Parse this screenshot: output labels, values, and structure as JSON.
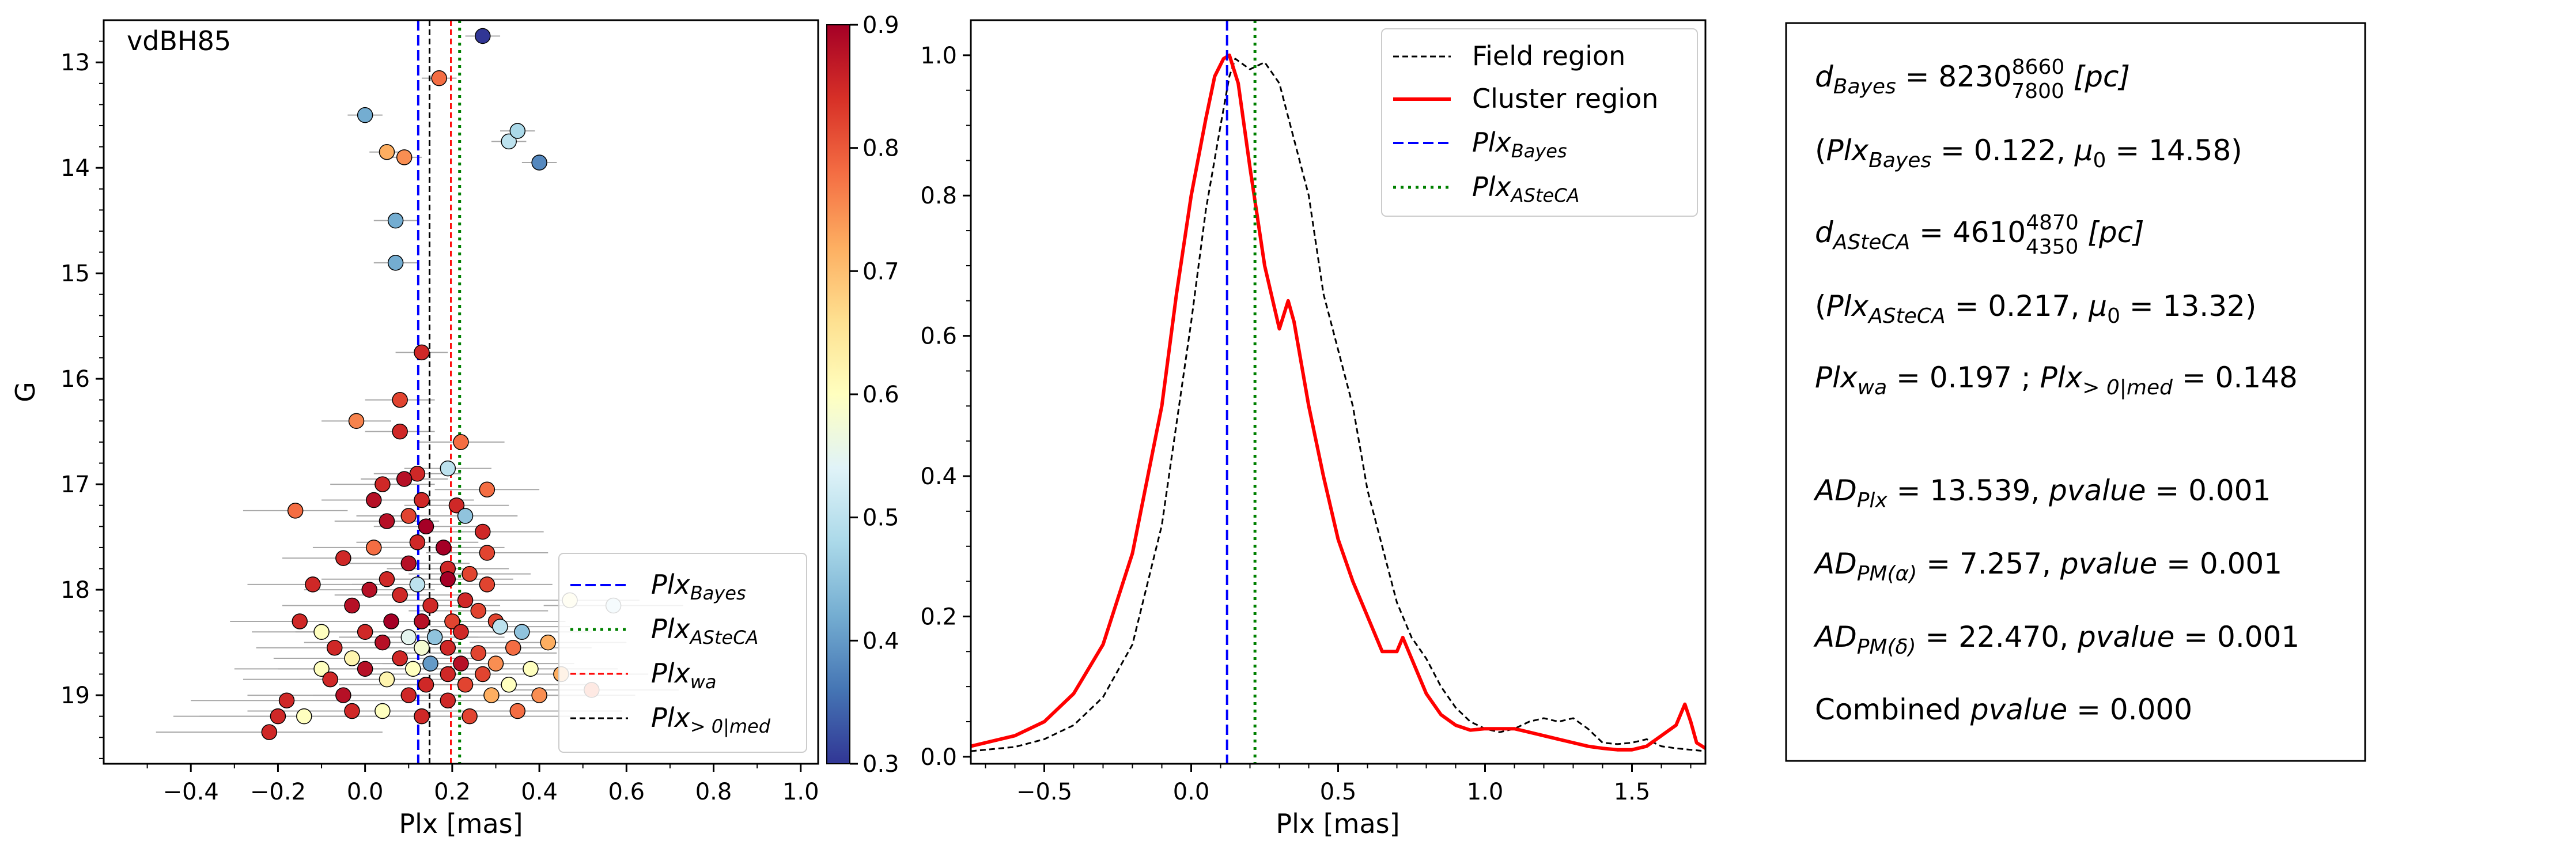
{
  "chart_data": [
    {
      "type": "scatter",
      "title": "vdBH85",
      "xlabel": "Plx [mas]",
      "ylabel": "G",
      "xlim": [
        -0.6,
        1.04
      ],
      "ylim": [
        19.65,
        12.6
      ],
      "y_inverted": true,
      "grid": false,
      "legend_placement": "lower-right",
      "xticks": [
        "−0.4",
        "−0.2",
        "0.0",
        "0.2",
        "0.4",
        "0.6",
        "0.8",
        "1.0"
      ],
      "xtick_values": [
        -0.4,
        -0.2,
        0.0,
        0.2,
        0.4,
        0.6,
        0.8,
        1.0
      ],
      "yticks": [
        "13",
        "14",
        "15",
        "16",
        "17",
        "18",
        "19"
      ],
      "ytick_values": [
        13,
        14,
        15,
        16,
        17,
        18,
        19
      ],
      "colorbar": {
        "min": 0.3,
        "max": 0.9,
        "ticks": [
          "0.3",
          "0.4",
          "0.5",
          "0.6",
          "0.7",
          "0.8",
          "0.9"
        ],
        "tick_values": [
          0.3,
          0.4,
          0.5,
          0.6,
          0.7,
          0.8,
          0.9
        ],
        "colormap": "RdYlBu_r"
      },
      "vertical_lines": [
        {
          "label_base": "Plx",
          "label_sub": "Bayes",
          "value": 0.122,
          "color": "#0000ff",
          "style": "dashed"
        },
        {
          "label_base": "Plx",
          "label_sub": "ASteCA",
          "value": 0.217,
          "color": "#008000",
          "style": "dotted"
        },
        {
          "label_base": "Plx",
          "label_sub": "wa",
          "value": 0.197,
          "color": "#ff0000",
          "style": "dashed"
        },
        {
          "label_base": "Plx",
          "label_sub": "> 0|med",
          "value": 0.148,
          "color": "#000000",
          "style": "dashed"
        }
      ],
      "points": [
        {
          "x": 0.27,
          "y": 12.75,
          "err": 0.04,
          "p": 0.3
        },
        {
          "x": 0.17,
          "y": 13.15,
          "err": 0.04,
          "p": 0.78
        },
        {
          "x": 0.0,
          "y": 13.5,
          "err": 0.04,
          "p": 0.42
        },
        {
          "x": 0.05,
          "y": 13.85,
          "err": 0.04,
          "p": 0.72
        },
        {
          "x": 0.09,
          "y": 13.9,
          "err": 0.04,
          "p": 0.75
        },
        {
          "x": 0.33,
          "y": 13.75,
          "err": 0.04,
          "p": 0.5
        },
        {
          "x": 0.35,
          "y": 13.65,
          "err": 0.04,
          "p": 0.48
        },
        {
          "x": 0.4,
          "y": 13.95,
          "err": 0.04,
          "p": 0.38
        },
        {
          "x": 0.07,
          "y": 14.5,
          "err": 0.05,
          "p": 0.42
        },
        {
          "x": 0.07,
          "y": 14.9,
          "err": 0.05,
          "p": 0.42
        },
        {
          "x": 0.13,
          "y": 15.75,
          "err": 0.06,
          "p": 0.85
        },
        {
          "x": 0.08,
          "y": 16.2,
          "err": 0.08,
          "p": 0.82
        },
        {
          "x": 0.08,
          "y": 16.5,
          "err": 0.08,
          "p": 0.85
        },
        {
          "x": -0.02,
          "y": 16.4,
          "err": 0.08,
          "p": 0.76
        },
        {
          "x": 0.22,
          "y": 16.6,
          "err": 0.1,
          "p": 0.78
        },
        {
          "x": 0.12,
          "y": 16.9,
          "err": 0.1,
          "p": 0.85
        },
        {
          "x": 0.19,
          "y": 16.85,
          "err": 0.1,
          "p": 0.5
        },
        {
          "x": 0.09,
          "y": 16.95,
          "err": 0.1,
          "p": 0.88
        },
        {
          "x": 0.04,
          "y": 17.0,
          "err": 0.12,
          "p": 0.85
        },
        {
          "x": 0.28,
          "y": 17.05,
          "err": 0.12,
          "p": 0.78
        },
        {
          "x": 0.02,
          "y": 17.15,
          "err": 0.12,
          "p": 0.88
        },
        {
          "x": 0.13,
          "y": 17.15,
          "err": 0.12,
          "p": 0.85
        },
        {
          "x": 0.21,
          "y": 17.2,
          "err": 0.12,
          "p": 0.85
        },
        {
          "x": -0.16,
          "y": 17.25,
          "err": 0.12,
          "p": 0.78
        },
        {
          "x": 0.1,
          "y": 17.3,
          "err": 0.12,
          "p": 0.82
        },
        {
          "x": 0.23,
          "y": 17.3,
          "err": 0.12,
          "p": 0.45
        },
        {
          "x": 0.05,
          "y": 17.35,
          "err": 0.12,
          "p": 0.88
        },
        {
          "x": 0.14,
          "y": 17.4,
          "err": 0.12,
          "p": 0.9
        },
        {
          "x": 0.27,
          "y": 17.45,
          "err": 0.14,
          "p": 0.85
        },
        {
          "x": 0.12,
          "y": 17.55,
          "err": 0.14,
          "p": 0.85
        },
        {
          "x": 0.02,
          "y": 17.6,
          "err": 0.14,
          "p": 0.78
        },
        {
          "x": 0.18,
          "y": 17.6,
          "err": 0.14,
          "p": 0.9
        },
        {
          "x": 0.28,
          "y": 17.65,
          "err": 0.14,
          "p": 0.82
        },
        {
          "x": -0.05,
          "y": 17.7,
          "err": 0.14,
          "p": 0.85
        },
        {
          "x": 0.1,
          "y": 17.75,
          "err": 0.14,
          "p": 0.88
        },
        {
          "x": 0.19,
          "y": 17.8,
          "err": 0.14,
          "p": 0.85
        },
        {
          "x": 0.24,
          "y": 17.85,
          "err": 0.14,
          "p": 0.82
        },
        {
          "x": 0.05,
          "y": 17.9,
          "err": 0.15,
          "p": 0.85
        },
        {
          "x": -0.12,
          "y": 17.95,
          "err": 0.15,
          "p": 0.85
        },
        {
          "x": 0.12,
          "y": 17.95,
          "err": 0.15,
          "p": 0.5
        },
        {
          "x": 0.19,
          "y": 17.9,
          "err": 0.15,
          "p": 0.9
        },
        {
          "x": 0.28,
          "y": 17.95,
          "err": 0.15,
          "p": 0.82
        },
        {
          "x": 0.01,
          "y": 18.0,
          "err": 0.15,
          "p": 0.88
        },
        {
          "x": 0.08,
          "y": 18.05,
          "err": 0.15,
          "p": 0.85
        },
        {
          "x": 0.23,
          "y": 18.1,
          "err": 0.15,
          "p": 0.85
        },
        {
          "x": -0.03,
          "y": 18.15,
          "err": 0.16,
          "p": 0.88
        },
        {
          "x": 0.15,
          "y": 18.15,
          "err": 0.16,
          "p": 0.85
        },
        {
          "x": 0.26,
          "y": 18.2,
          "err": 0.16,
          "p": 0.82
        },
        {
          "x": -0.15,
          "y": 18.3,
          "err": 0.16,
          "p": 0.85
        },
        {
          "x": 0.06,
          "y": 18.3,
          "err": 0.16,
          "p": 0.9
        },
        {
          "x": 0.13,
          "y": 18.3,
          "err": 0.16,
          "p": 0.88
        },
        {
          "x": 0.2,
          "y": 18.3,
          "err": 0.16,
          "p": 0.82
        },
        {
          "x": 0.3,
          "y": 18.3,
          "err": 0.16,
          "p": 0.82
        },
        {
          "x": -0.1,
          "y": 18.4,
          "err": 0.16,
          "p": 0.6
        },
        {
          "x": 0.0,
          "y": 18.4,
          "err": 0.16,
          "p": 0.85
        },
        {
          "x": 0.1,
          "y": 18.45,
          "err": 0.16,
          "p": 0.55
        },
        {
          "x": 0.16,
          "y": 18.45,
          "err": 0.16,
          "p": 0.45
        },
        {
          "x": 0.22,
          "y": 18.4,
          "err": 0.16,
          "p": 0.85
        },
        {
          "x": 0.31,
          "y": 18.35,
          "err": 0.16,
          "p": 0.5
        },
        {
          "x": 0.36,
          "y": 18.4,
          "err": 0.16,
          "p": 0.45
        },
        {
          "x": 0.47,
          "y": 18.1,
          "err": 0.16,
          "p": 0.62
        },
        {
          "x": 0.57,
          "y": 18.15,
          "err": 0.16,
          "p": 0.5
        },
        {
          "x": -0.07,
          "y": 18.55,
          "err": 0.18,
          "p": 0.85
        },
        {
          "x": 0.04,
          "y": 18.5,
          "err": 0.18,
          "p": 0.88
        },
        {
          "x": 0.13,
          "y": 18.55,
          "err": 0.18,
          "p": 0.58
        },
        {
          "x": 0.19,
          "y": 18.55,
          "err": 0.18,
          "p": 0.85
        },
        {
          "x": 0.26,
          "y": 18.6,
          "err": 0.18,
          "p": 0.82
        },
        {
          "x": 0.34,
          "y": 18.55,
          "err": 0.18,
          "p": 0.78
        },
        {
          "x": 0.42,
          "y": 18.5,
          "err": 0.18,
          "p": 0.72
        },
        {
          "x": -0.03,
          "y": 18.65,
          "err": 0.18,
          "p": 0.62
        },
        {
          "x": 0.08,
          "y": 18.65,
          "err": 0.18,
          "p": 0.85
        },
        {
          "x": 0.15,
          "y": 18.7,
          "err": 0.18,
          "p": 0.4
        },
        {
          "x": 0.22,
          "y": 18.7,
          "err": 0.18,
          "p": 0.88
        },
        {
          "x": 0.3,
          "y": 18.7,
          "err": 0.18,
          "p": 0.75
        },
        {
          "x": -0.1,
          "y": 18.75,
          "err": 0.2,
          "p": 0.6
        },
        {
          "x": 0.0,
          "y": 18.75,
          "err": 0.2,
          "p": 0.88
        },
        {
          "x": 0.11,
          "y": 18.75,
          "err": 0.2,
          "p": 0.6
        },
        {
          "x": 0.19,
          "y": 18.8,
          "err": 0.2,
          "p": 0.85
        },
        {
          "x": 0.27,
          "y": 18.8,
          "err": 0.2,
          "p": 0.82
        },
        {
          "x": 0.38,
          "y": 18.75,
          "err": 0.2,
          "p": 0.6
        },
        {
          "x": 0.45,
          "y": 18.8,
          "err": 0.2,
          "p": 0.72
        },
        {
          "x": -0.08,
          "y": 18.85,
          "err": 0.2,
          "p": 0.85
        },
        {
          "x": 0.05,
          "y": 18.85,
          "err": 0.2,
          "p": 0.62
        },
        {
          "x": 0.14,
          "y": 18.9,
          "err": 0.2,
          "p": 0.85
        },
        {
          "x": 0.23,
          "y": 18.9,
          "err": 0.2,
          "p": 0.82
        },
        {
          "x": 0.33,
          "y": 18.9,
          "err": 0.2,
          "p": 0.6
        },
        {
          "x": 0.52,
          "y": 18.95,
          "err": 0.2,
          "p": 0.78
        },
        {
          "x": -0.05,
          "y": 19.0,
          "err": 0.22,
          "p": 0.88
        },
        {
          "x": 0.1,
          "y": 19.0,
          "err": 0.22,
          "p": 0.85
        },
        {
          "x": 0.19,
          "y": 19.05,
          "err": 0.22,
          "p": 0.85
        },
        {
          "x": 0.29,
          "y": 19.0,
          "err": 0.22,
          "p": 0.72
        },
        {
          "x": 0.4,
          "y": 19.0,
          "err": 0.22,
          "p": 0.75
        },
        {
          "x": -0.18,
          "y": 19.05,
          "err": 0.22,
          "p": 0.85
        },
        {
          "x": -0.2,
          "y": 19.2,
          "err": 0.24,
          "p": 0.85
        },
        {
          "x": -0.14,
          "y": 19.2,
          "err": 0.24,
          "p": 0.6
        },
        {
          "x": -0.03,
          "y": 19.15,
          "err": 0.24,
          "p": 0.85
        },
        {
          "x": 0.04,
          "y": 19.15,
          "err": 0.24,
          "p": 0.6
        },
        {
          "x": 0.13,
          "y": 19.2,
          "err": 0.24,
          "p": 0.85
        },
        {
          "x": 0.24,
          "y": 19.2,
          "err": 0.24,
          "p": 0.82
        },
        {
          "x": 0.35,
          "y": 19.15,
          "err": 0.24,
          "p": 0.78
        },
        {
          "x": -0.22,
          "y": 19.35,
          "err": 0.26,
          "p": 0.85
        }
      ]
    },
    {
      "type": "line",
      "title": "",
      "xlabel": "Plx [mas]",
      "ylabel": "",
      "xlim": [
        -0.75,
        1.75
      ],
      "ylim": [
        -0.01,
        1.05
      ],
      "grid": false,
      "legend_placement": "top-right",
      "xticks": [
        "−0.5",
        "0.0",
        "0.5",
        "1.0",
        "1.5"
      ],
      "xtick_values": [
        -0.5,
        0.0,
        0.5,
        1.0,
        1.5
      ],
      "yticks": [
        "0.0",
        "0.2",
        "0.4",
        "0.6",
        "0.8",
        "1.0"
      ],
      "ytick_values": [
        0.0,
        0.2,
        0.4,
        0.6,
        0.8,
        1.0
      ],
      "series": [
        {
          "name": "Field region",
          "color": "#000000",
          "style": "dashed",
          "x": [
            -0.75,
            -0.6,
            -0.5,
            -0.4,
            -0.3,
            -0.2,
            -0.1,
            0.0,
            0.05,
            0.1,
            0.13,
            0.15,
            0.2,
            0.25,
            0.3,
            0.35,
            0.4,
            0.45,
            0.5,
            0.55,
            0.6,
            0.65,
            0.7,
            0.75,
            0.8,
            0.85,
            0.9,
            0.95,
            1.0,
            1.05,
            1.1,
            1.15,
            1.2,
            1.25,
            1.3,
            1.35,
            1.4,
            1.45,
            1.5,
            1.55,
            1.6,
            1.65,
            1.7,
            1.75
          ],
          "values": [
            0.008,
            0.014,
            0.025,
            0.045,
            0.085,
            0.16,
            0.33,
            0.62,
            0.78,
            0.9,
            0.97,
            0.995,
            0.98,
            0.99,
            0.96,
            0.88,
            0.8,
            0.66,
            0.58,
            0.5,
            0.38,
            0.3,
            0.22,
            0.17,
            0.14,
            0.1,
            0.07,
            0.05,
            0.04,
            0.035,
            0.04,
            0.05,
            0.055,
            0.05,
            0.055,
            0.04,
            0.02,
            0.018,
            0.02,
            0.025,
            0.015,
            0.012,
            0.01,
            0.008
          ]
        },
        {
          "name": "Cluster region",
          "color": "#ff0000",
          "style": "solid",
          "x": [
            -0.75,
            -0.6,
            -0.5,
            -0.4,
            -0.3,
            -0.2,
            -0.1,
            -0.05,
            0.0,
            0.05,
            0.08,
            0.11,
            0.13,
            0.16,
            0.2,
            0.25,
            0.3,
            0.33,
            0.35,
            0.4,
            0.45,
            0.5,
            0.55,
            0.6,
            0.65,
            0.7,
            0.72,
            0.75,
            0.8,
            0.85,
            0.9,
            0.95,
            1.0,
            1.05,
            1.1,
            1.15,
            1.2,
            1.25,
            1.3,
            1.35,
            1.4,
            1.45,
            1.5,
            1.55,
            1.6,
            1.65,
            1.68,
            1.7,
            1.72,
            1.75
          ],
          "values": [
            0.015,
            0.03,
            0.05,
            0.09,
            0.16,
            0.29,
            0.5,
            0.66,
            0.8,
            0.91,
            0.97,
            0.995,
            1.0,
            0.96,
            0.84,
            0.7,
            0.61,
            0.65,
            0.62,
            0.5,
            0.4,
            0.31,
            0.25,
            0.2,
            0.15,
            0.15,
            0.17,
            0.14,
            0.09,
            0.06,
            0.045,
            0.038,
            0.04,
            0.04,
            0.04,
            0.035,
            0.03,
            0.025,
            0.02,
            0.015,
            0.012,
            0.01,
            0.01,
            0.015,
            0.03,
            0.045,
            0.075,
            0.05,
            0.02,
            0.012
          ]
        }
      ],
      "vertical_lines": [
        {
          "label_base": "Plx",
          "label_sub": "Bayes",
          "value": 0.122,
          "color": "#0000ff",
          "style": "dashed"
        },
        {
          "label_base": "Plx",
          "label_sub": "ASteCA",
          "value": 0.217,
          "color": "#008000",
          "style": "dotted"
        }
      ]
    }
  ],
  "stats_panel": {
    "line1": {
      "base": "d",
      "sub": "Bayes",
      "eq": " = 8230",
      "up": "8660",
      "low": "7800",
      "unit": " [pc]"
    },
    "line2": {
      "open": "(",
      "base": "Plx",
      "sub": "Bayes",
      "eq": " = 0.122, ",
      "mu": "μ",
      "mu_sub": "0",
      "mu_eq": " = 14.58)"
    },
    "line3": {
      "base": "d",
      "sub": "ASteCA",
      "eq": " = 4610",
      "up": "4870",
      "low": "4350",
      "unit": " [pc]"
    },
    "line4": {
      "open": "(",
      "base": "Plx",
      "sub": "ASteCA",
      "eq": " = 0.217, ",
      "mu": "μ",
      "mu_sub": "0",
      "mu_eq": " = 13.32)"
    },
    "line5": {
      "base1": "Plx",
      "sub1": "wa",
      "eq1": " = 0.197 ; ",
      "base2": "Plx",
      "sub2": "> 0|med",
      "eq2": " = 0.148"
    },
    "line6": {
      "base": "AD",
      "sub": "Plx",
      "eq": " = 13.539, ",
      "pv": "pvalue",
      "pv_eq": " = 0.001"
    },
    "line7": {
      "base": "AD",
      "sub": "PM(α)",
      "eq": " = 7.257, ",
      "pv": "pvalue",
      "pv_eq": " = 0.001"
    },
    "line8": {
      "base": "AD",
      "sub": "PM(δ)",
      "eq": " = 22.470, ",
      "pv": "pvalue",
      "pv_eq": " = 0.001"
    },
    "line9": {
      "pre": "Combined ",
      "pv": "pvalue",
      "pv_eq": " = 0.000"
    }
  }
}
